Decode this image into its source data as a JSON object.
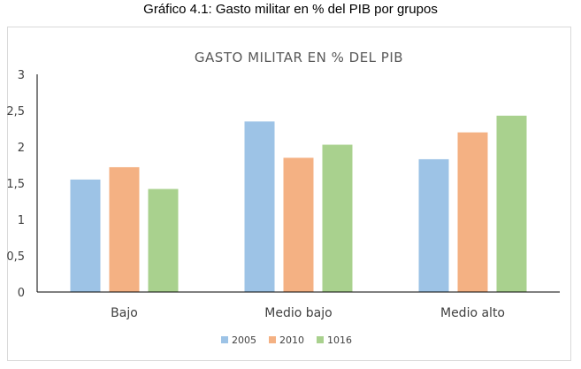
{
  "caption": "Gráfico 4.1: Gasto militar en % del PIB por grupos",
  "chart_data": {
    "type": "bar",
    "title": "GASTO MILITAR EN % DEL PIB",
    "categories": [
      "Bajo",
      "Medio bajo",
      "Medio alto"
    ],
    "series": [
      {
        "name": "2005",
        "color": "#9dc3e6",
        "values": [
          1.55,
          2.35,
          1.83
        ]
      },
      {
        "name": "2010",
        "color": "#f4b183",
        "values": [
          1.72,
          1.85,
          2.2
        ]
      },
      {
        "name": "1016",
        "color": "#a9d18e",
        "values": [
          1.42,
          2.03,
          2.43
        ]
      }
    ],
    "ylim": [
      0,
      3
    ],
    "yticks": [
      0,
      0.5,
      1,
      1.5,
      2,
      2.5,
      3
    ],
    "ytick_labels": [
      "0",
      "0,5",
      "1",
      "1,5",
      "2",
      "2,5",
      "3"
    ],
    "grid": false,
    "legend_position": "bottom",
    "xlabel": "",
    "ylabel": ""
  }
}
